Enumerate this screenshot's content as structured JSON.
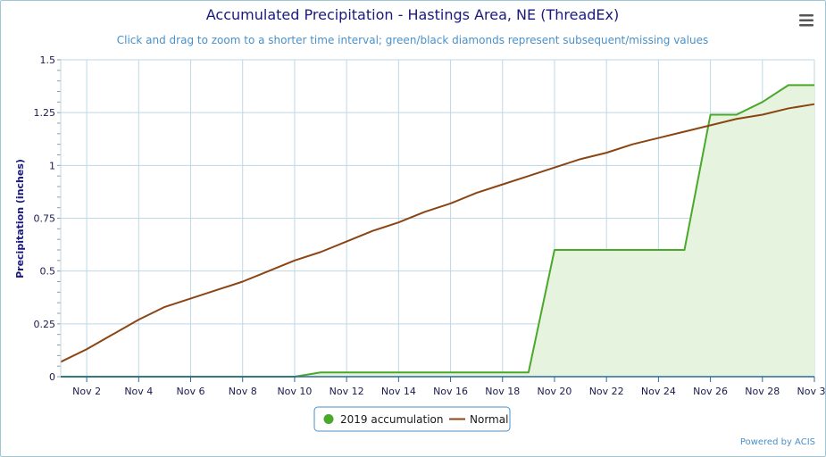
{
  "chart_data": {
    "type": "line",
    "title": "Accumulated Precipitation - Hastings Area, NE (ThreadEx)",
    "subtitle": "Click and drag to zoom to a shorter time interval; green/black diamonds represent subsequent/missing values",
    "ylabel": "Precipitation (inches)",
    "ylim": [
      0,
      1.5
    ],
    "yticks": [
      0,
      0.25,
      0.5,
      0.75,
      1,
      1.25,
      1.5
    ],
    "ytick_labels": [
      "0",
      "0.25",
      "0.5",
      "0.75",
      "1",
      "1.25",
      "1.5"
    ],
    "x_days": [
      1,
      2,
      3,
      4,
      5,
      6,
      7,
      8,
      9,
      10,
      11,
      12,
      13,
      14,
      15,
      16,
      17,
      18,
      19,
      20,
      21,
      22,
      23,
      24,
      25,
      26,
      27,
      28,
      29,
      30
    ],
    "xticks": [
      2,
      4,
      6,
      8,
      10,
      12,
      14,
      16,
      18,
      20,
      22,
      24,
      26,
      28,
      30
    ],
    "xtick_labels": [
      "Nov 2",
      "Nov 4",
      "Nov 6",
      "Nov 8",
      "Nov 10",
      "Nov 12",
      "Nov 14",
      "Nov 16",
      "Nov 18",
      "Nov 20",
      "Nov 22",
      "Nov 24",
      "Nov 26",
      "Nov 28",
      "Nov 30"
    ],
    "grid": true,
    "legend_position": "bottom",
    "series": [
      {
        "name": "2019 accumulation",
        "color": "#4aa82a",
        "fill": "#e6f3de",
        "values": [
          0,
          0,
          0,
          0,
          0,
          0,
          0,
          0,
          0,
          0,
          0.02,
          0.02,
          0.02,
          0.02,
          0.02,
          0.02,
          0.02,
          0.02,
          0.02,
          0.6,
          0.6,
          0.6,
          0.6,
          0.6,
          0.6,
          1.24,
          1.24,
          1.3,
          1.38,
          1.38
        ]
      },
      {
        "name": "Normal",
        "color": "#8b4513",
        "values": [
          0.07,
          0.13,
          0.2,
          0.27,
          0.33,
          0.37,
          0.41,
          0.45,
          0.5,
          0.55,
          0.59,
          0.64,
          0.69,
          0.73,
          0.78,
          0.82,
          0.87,
          0.91,
          0.95,
          0.99,
          1.03,
          1.06,
          1.1,
          1.13,
          1.16,
          1.19,
          1.22,
          1.24,
          1.27,
          1.29
        ]
      }
    ]
  },
  "menu_icon": "hamburger-menu-icon",
  "credit": "Powered by ACIS",
  "colors": {
    "title": "#1a1a7e",
    "subtitle": "#4a90c8",
    "grid": "#bdd8e6",
    "axis": "#2a6a9a",
    "frame": "#9ec8d8"
  }
}
